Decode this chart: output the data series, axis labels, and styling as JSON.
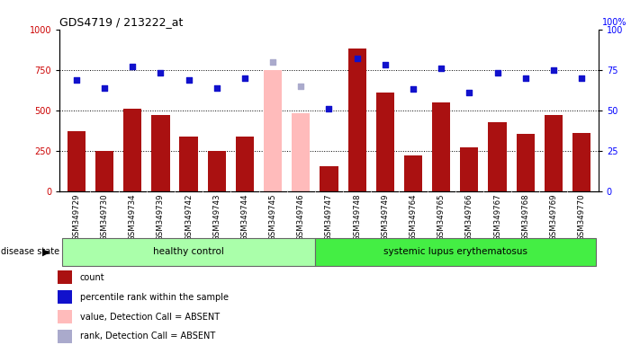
{
  "title": "GDS4719 / 213222_at",
  "samples": [
    "GSM349729",
    "GSM349730",
    "GSM349734",
    "GSM349739",
    "GSM349742",
    "GSM349743",
    "GSM349744",
    "GSM349745",
    "GSM349746",
    "GSM349747",
    "GSM349748",
    "GSM349749",
    "GSM349764",
    "GSM349765",
    "GSM349766",
    "GSM349767",
    "GSM349768",
    "GSM349769",
    "GSM349770"
  ],
  "counts": [
    370,
    250,
    510,
    470,
    340,
    250,
    340,
    750,
    480,
    155,
    880,
    610,
    220,
    550,
    270,
    425,
    355,
    470,
    360
  ],
  "absent_count_indices": [
    7,
    8
  ],
  "percentile_ranks": [
    69,
    64,
    77,
    73,
    69,
    64,
    70,
    80,
    65,
    51,
    82,
    78,
    63,
    76,
    61,
    73,
    70,
    75,
    70
  ],
  "absent_rank_indices": [
    7,
    8
  ],
  "healthy_control_count": 9,
  "group1_label": "healthy control",
  "group2_label": "systemic lupus erythematosus",
  "disease_state_label": "disease state",
  "ylim_left": [
    0,
    1000
  ],
  "ylim_right": [
    0,
    100
  ],
  "yticks_left": [
    0,
    250,
    500,
    750,
    1000
  ],
  "yticks_right": [
    0,
    25,
    50,
    75,
    100
  ],
  "bar_color_normal": "#aa1111",
  "bar_color_absent": "#ffbbbb",
  "dot_color_normal": "#1111cc",
  "dot_color_absent": "#aaaacc",
  "group1_color": "#aaffaa",
  "group2_color": "#44ee44",
  "legend_items": [
    {
      "label": "count",
      "color": "#aa1111"
    },
    {
      "label": "percentile rank within the sample",
      "color": "#1111cc"
    },
    {
      "label": "value, Detection Call = ABSENT",
      "color": "#ffbbbb"
    },
    {
      "label": "rank, Detection Call = ABSENT",
      "color": "#aaaacc"
    }
  ]
}
